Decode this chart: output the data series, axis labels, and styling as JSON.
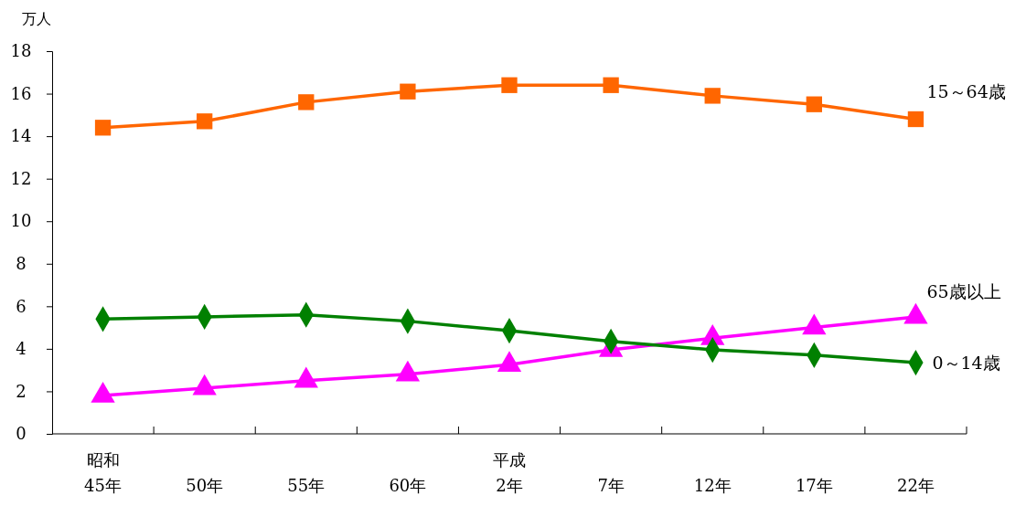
{
  "chart_data": {
    "type": "line",
    "ylabel": "万人",
    "categories": [
      "昭和\n45年",
      "50年",
      "55年",
      "60年",
      "平成\n2年",
      "7年",
      "12年",
      "17年",
      "22年"
    ],
    "ylim": [
      0,
      18
    ],
    "yticks": [
      0,
      2,
      4,
      6,
      8,
      10,
      12,
      14,
      16,
      18
    ],
    "grid": false,
    "line_style": "solid",
    "series": [
      {
        "name": "15～64歳",
        "color": "#ff6600",
        "marker": "square",
        "values": [
          14.4,
          14.7,
          15.6,
          16.1,
          16.4,
          16.4,
          15.9,
          15.5,
          14.8
        ]
      },
      {
        "name": "65歳以上",
        "color": "#ff00ff",
        "marker": "triangle",
        "values": [
          1.8,
          2.15,
          2.5,
          2.8,
          3.25,
          3.95,
          4.5,
          5.0,
          5.5
        ]
      },
      {
        "name": "0～14歳",
        "color": "#008000",
        "marker": "diamond",
        "values": [
          5.4,
          5.5,
          5.6,
          5.3,
          4.85,
          4.35,
          3.95,
          3.7,
          3.35
        ]
      }
    ]
  }
}
